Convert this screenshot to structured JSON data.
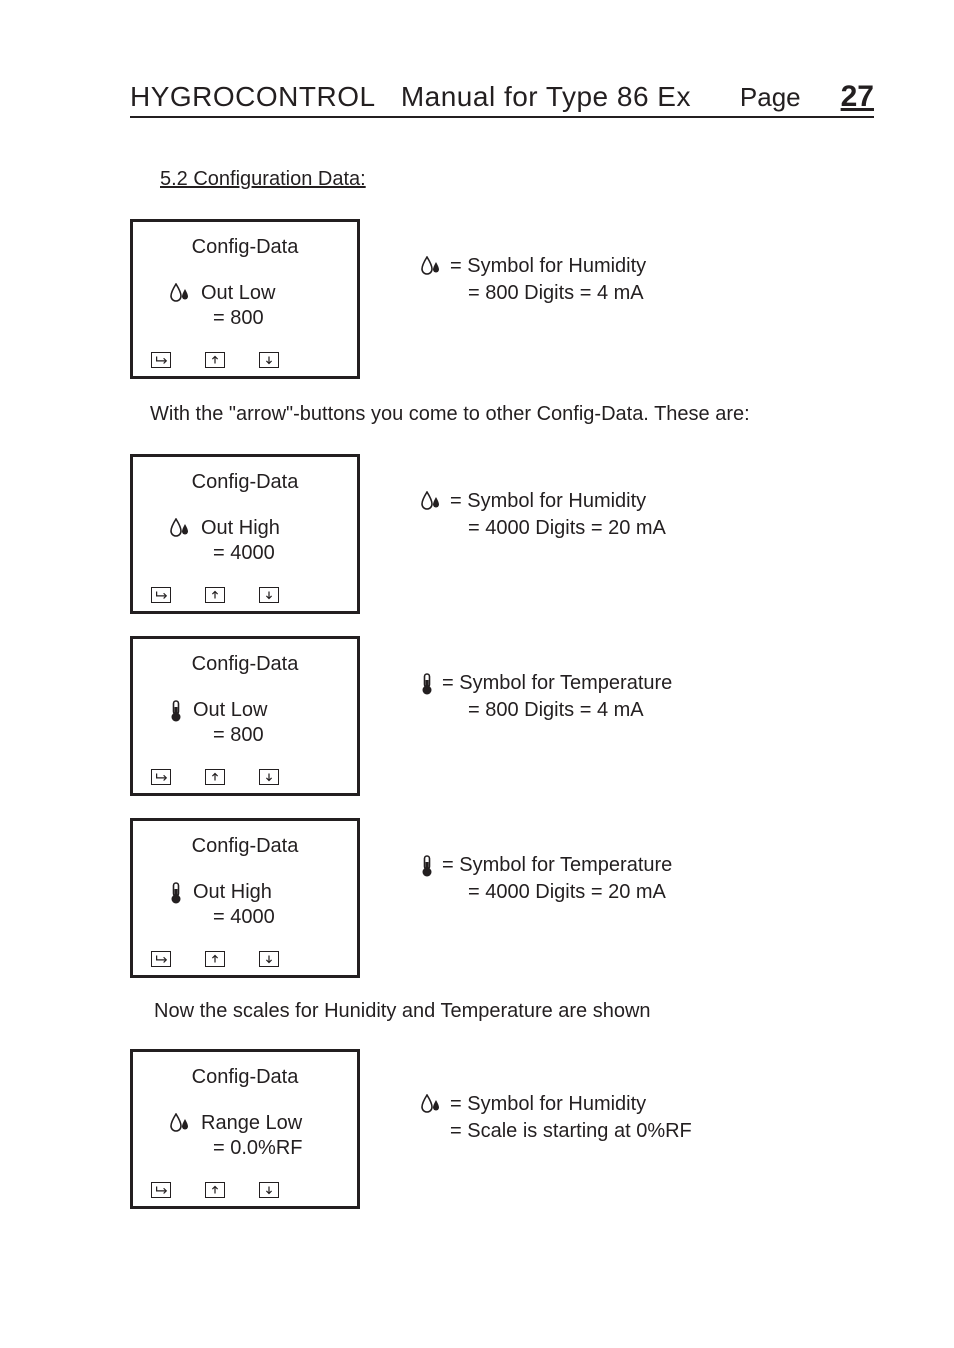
{
  "header": {
    "brand": "HYGROCONTROL",
    "title_rest": "Manual for Type 86 Ex",
    "page_label": "Page",
    "page_number": "27"
  },
  "section_title": "5.2 Configuration Data:",
  "blocks": [
    {
      "icon": "humidity",
      "lcd_title": "Config-Data",
      "line1": "Out  Low",
      "line2": "=   800",
      "explain1": "= Symbol for Humidity",
      "explain2": "= 800 Digits = 4 mA"
    }
  ],
  "intertext1": "With the \"arrow\"-buttons you come to other Config-Data. These are:",
  "blocks2": [
    {
      "icon": "humidity",
      "lcd_title": "Config-Data",
      "line1": "Out  High",
      "line2": "=  4000",
      "explain1": "= Symbol for Humidity",
      "explain2": "= 4000 Digits = 20 mA"
    },
    {
      "icon": "temperature",
      "lcd_title": "Config-Data",
      "line1": "Out  Low",
      "line2": "=   800",
      "explain1": "= Symbol for Temperature",
      "explain2": "= 800 Digits = 4 mA"
    },
    {
      "icon": "temperature",
      "lcd_title": "Config-Data",
      "line1": "Out  High",
      "line2": "=  4000",
      "explain1": "= Symbol for Temperature",
      "explain2": "= 4000 Digits = 20 mA"
    }
  ],
  "intertext2": "Now the scales for Hunidity and Temperature are shown",
  "blocks3": [
    {
      "icon": "humidity",
      "lcd_title": "Config-Data",
      "line1": "Range Low",
      "line2": "=  0.0%RF",
      "explain1": "= Symbol for Humidity",
      "explain2": "= Scale is starting at 0%RF"
    }
  ],
  "lcd_buttons": [
    "enter",
    "up",
    "down"
  ],
  "colors": {
    "text": "#231f20",
    "background": "#ffffff",
    "border": "#231f20"
  }
}
